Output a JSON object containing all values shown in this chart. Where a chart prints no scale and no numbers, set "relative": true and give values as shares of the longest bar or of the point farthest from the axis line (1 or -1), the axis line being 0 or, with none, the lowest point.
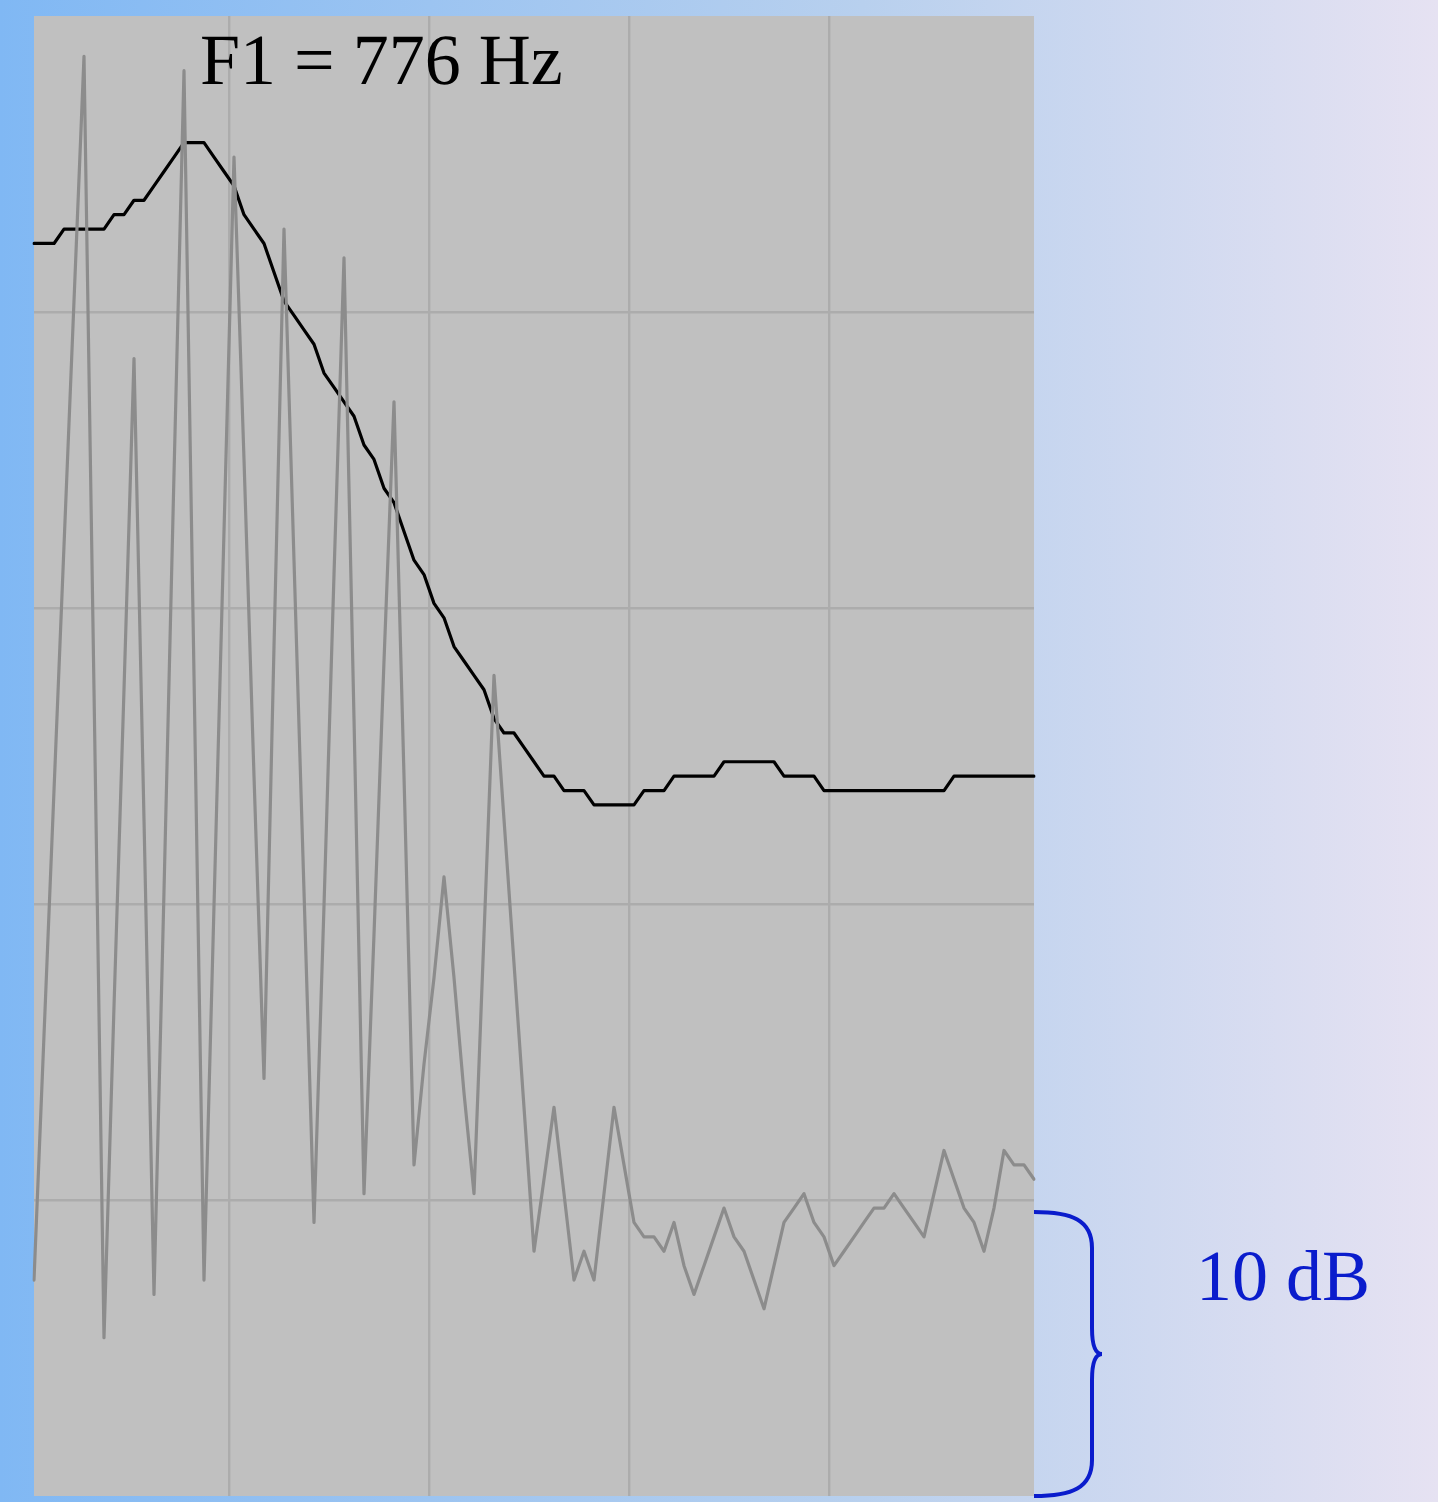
{
  "chart_data": {
    "type": "line",
    "relative": true,
    "grid": true,
    "categories": [
      null,
      null,
      null,
      null,
      null,
      null,
      null,
      null,
      null,
      null,
      null,
      null,
      null,
      null,
      null,
      null,
      null,
      null,
      null,
      null,
      null,
      null,
      null,
      null,
      null,
      null,
      null,
      null,
      null,
      null,
      null,
      null,
      null,
      null,
      null,
      null,
      null,
      null,
      null,
      null,
      null,
      null,
      null,
      null,
      null,
      null,
      null,
      null,
      null,
      null,
      null,
      null,
      null,
      null,
      null,
      null,
      null,
      null,
      null,
      null,
      null,
      null,
      null,
      null,
      null,
      null,
      null,
      null,
      null,
      null,
      null,
      null,
      null,
      null,
      null,
      null,
      null,
      null,
      null,
      null,
      null,
      null,
      null,
      null,
      null,
      null,
      null,
      null,
      null,
      null,
      null,
      null,
      null,
      null,
      null,
      null,
      null,
      null,
      null,
      null,
      null
    ],
    "series": [
      {
        "color": "#8c8c8c",
        "values": [
          0.15,
          0.32,
          0.49,
          0.66,
          0.83,
          1,
          0.56,
          0.11,
          0.34,
          0.56,
          0.79,
          0.47,
          0.14,
          0.42,
          0.71,
          0.99,
          0.57,
          0.15,
          0.41,
          0.67,
          0.93,
          0.72,
          0.5,
          0.29,
          0.59,
          0.88,
          0.65,
          0.42,
          0.19,
          0.41,
          0.64,
          0.86,
          0.54,
          0.21,
          0.39,
          0.58,
          0.76,
          0.5,
          0.23,
          0.3,
          0.36,
          0.43,
          0.36,
          0.28,
          0.21,
          0.39,
          0.57,
          0.47,
          0.37,
          0.27,
          0.17,
          0.22,
          0.27,
          0.21,
          0.15,
          0.17,
          0.15,
          0.21,
          0.27,
          0.23,
          0.19,
          0.18,
          0.18,
          0.17,
          0.19,
          0.16,
          0.14,
          0.16,
          0.18,
          0.2,
          0.18,
          0.17,
          0.15,
          0.13,
          0.16,
          0.19,
          0.2,
          0.21,
          0.19,
          0.18,
          0.16,
          0.17,
          0.18,
          0.19,
          0.2,
          0.2,
          0.21,
          0.2,
          0.19,
          0.18,
          0.21,
          0.24,
          0.22,
          0.2,
          0.19,
          0.17,
          0.2,
          0.24,
          0.23,
          0.23,
          0.22
        ]
      },
      {
        "color": "#000000",
        "values": [
          0.87,
          0.87,
          0.87,
          0.88,
          0.88,
          0.88,
          0.88,
          0.88,
          0.89,
          0.89,
          0.9,
          0.9,
          0.91,
          0.92,
          0.93,
          0.94,
          0.94,
          0.94,
          0.93,
          0.92,
          0.91,
          0.89,
          0.88,
          0.87,
          0.85,
          0.83,
          0.82,
          0.81,
          0.8,
          0.78,
          0.77,
          0.76,
          0.75,
          0.73,
          0.72,
          0.7,
          0.69,
          0.67,
          0.65,
          0.64,
          0.62,
          0.61,
          0.59,
          0.58,
          0.57,
          0.56,
          0.54,
          0.53,
          0.53,
          0.52,
          0.51,
          0.5,
          0.5,
          0.49,
          0.49,
          0.49,
          0.48,
          0.48,
          0.48,
          0.48,
          0.48,
          0.49,
          0.49,
          0.49,
          0.5,
          0.5,
          0.5,
          0.5,
          0.5,
          0.51,
          0.51,
          0.51,
          0.51,
          0.51,
          0.51,
          0.5,
          0.5,
          0.5,
          0.5,
          0.49,
          0.49,
          0.49,
          0.49,
          0.49,
          0.49,
          0.49,
          0.49,
          0.49,
          0.49,
          0.49,
          0.49,
          0.49,
          0.5,
          0.5,
          0.5,
          0.5,
          0.5,
          0.5,
          0.5,
          0.5,
          0.5
        ]
      }
    ],
    "annotations": [
      "F1 = 776 Hz",
      "10 dB"
    ]
  }
}
